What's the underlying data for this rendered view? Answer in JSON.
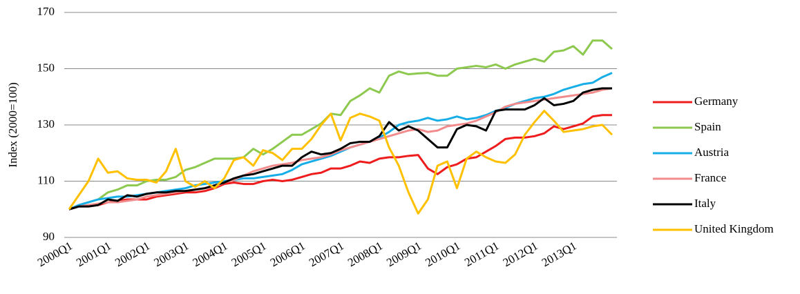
{
  "chart_data": {
    "type": "line",
    "y_label": "Index (2000=100)",
    "categories": [
      "2000Q1",
      null,
      null,
      null,
      "2001Q1",
      null,
      null,
      null,
      "2002Q1",
      null,
      null,
      null,
      "2003Q1",
      null,
      null,
      null,
      "2004Q1",
      null,
      null,
      null,
      "2005Q1",
      null,
      null,
      null,
      "2006Q1",
      null,
      null,
      null,
      "2007Q1",
      null,
      null,
      null,
      "2008Q1",
      null,
      null,
      null,
      "2009Q1",
      null,
      null,
      null,
      "2010Q1",
      null,
      null,
      null,
      "2011Q1",
      null,
      null,
      null,
      "2012Q1",
      null,
      null,
      null,
      "2013Q1",
      null,
      null,
      null,
      null
    ],
    "ylim": [
      90,
      170
    ],
    "yticks": [
      90,
      110,
      130,
      150,
      170
    ],
    "grid": true,
    "legend": "right",
    "series": [
      {
        "name": "Germany",
        "color": "#ee1c1c",
        "values": [
          100,
          101,
          101,
          101.5,
          102.5,
          103,
          103.5,
          103.5,
          103.5,
          104.5,
          105,
          105.5,
          106,
          106,
          106.5,
          107.5,
          109,
          109.5,
          109,
          109,
          110,
          110.5,
          110,
          110.5,
          111.5,
          112.5,
          113,
          114.5,
          114.5,
          115.5,
          117,
          116.5,
          118,
          118.5,
          118.5,
          119,
          119.3,
          114.5,
          112.5,
          115,
          116,
          118,
          118.5,
          120.5,
          122.5,
          125,
          125.5,
          125.5,
          126,
          127,
          129.5,
          128.5,
          129.5,
          130.5,
          133,
          133.5,
          133.5
        ]
      },
      {
        "name": "Spain",
        "color": "#8cc94e",
        "values": [
          100,
          101.5,
          102.5,
          103.5,
          106,
          107,
          108.5,
          108.5,
          110,
          110.5,
          110.5,
          111.5,
          114,
          115,
          116.5,
          118,
          118,
          118,
          118.5,
          121.5,
          119.5,
          121.5,
          124,
          126.5,
          126.5,
          128.5,
          130.5,
          134,
          133.5,
          138.5,
          140.5,
          143,
          141.5,
          147.5,
          149,
          148,
          148.3,
          148.5,
          147.5,
          147.5,
          150,
          150.5,
          151,
          150.5,
          151.5,
          150,
          151.5,
          152.5,
          153.5,
          152.5,
          156,
          156.5,
          158,
          155,
          160,
          160,
          157
        ]
      },
      {
        "name": "Austria",
        "color": "#17aee8",
        "values": [
          100,
          101.5,
          102.5,
          103.5,
          104,
          104.5,
          104.5,
          105,
          105.5,
          106,
          106.5,
          107,
          107.5,
          108.5,
          109,
          109.5,
          110,
          110.5,
          111,
          111,
          111.5,
          112,
          112.5,
          114,
          116,
          117,
          118,
          119,
          120.5,
          122,
          123,
          124,
          125.5,
          127.5,
          130,
          131,
          131.5,
          132.5,
          131.5,
          132,
          133,
          132,
          132.5,
          133.5,
          135,
          136,
          137.5,
          138.5,
          139.5,
          140,
          141,
          142.5,
          143.5,
          144.5,
          145,
          147,
          148.5
        ]
      },
      {
        "name": "France",
        "color": "#f28c8c",
        "values": [
          100,
          101,
          101.5,
          102,
          102.5,
          102.5,
          103,
          103.5,
          104.5,
          105,
          105.5,
          106,
          106.5,
          107,
          107.5,
          108,
          109.5,
          110.5,
          112,
          113.5,
          114.5,
          115.5,
          116,
          116.5,
          117.5,
          118,
          118.5,
          119.5,
          121,
          122,
          123,
          124,
          125,
          126,
          127,
          128,
          128.5,
          127.5,
          128,
          129.5,
          130,
          130.5,
          131.5,
          133,
          134.5,
          136.5,
          137.5,
          138,
          138.5,
          139,
          139.5,
          140,
          140.5,
          141,
          141.5,
          142.5,
          143
        ]
      },
      {
        "name": "Italy",
        "color": "#000000",
        "values": [
          100,
          101,
          101,
          101.5,
          103.5,
          103,
          105,
          104.5,
          105.5,
          106,
          106,
          106.5,
          106.5,
          107,
          107.5,
          108.5,
          109.5,
          111,
          112,
          112.5,
          113.5,
          114.5,
          115.5,
          115.5,
          118.5,
          120.5,
          119.5,
          120,
          121.5,
          123.5,
          124,
          124,
          126,
          131,
          128,
          129.5,
          128,
          125,
          122,
          122,
          128.5,
          130,
          129.5,
          128,
          135,
          135.5,
          135.5,
          135.5,
          137,
          139.5,
          137,
          137.5,
          138.5,
          141.5,
          142.5,
          143,
          143
        ]
      },
      {
        "name": "United Kingdom",
        "color": "#ffc000",
        "values": [
          100,
          105,
          110,
          118,
          113,
          113.5,
          111,
          110.5,
          110.5,
          109.5,
          113.5,
          121.5,
          110,
          108,
          110,
          107.5,
          111,
          117.5,
          118.5,
          115.5,
          121,
          120,
          117.5,
          121.5,
          121.5,
          125,
          130,
          134,
          124.5,
          132.5,
          134,
          133,
          131.5,
          122,
          115.5,
          106,
          98.5,
          103.5,
          115.5,
          117,
          107.5,
          118,
          120.5,
          118.5,
          117,
          116.5,
          119.5,
          126.5,
          131,
          135,
          131.5,
          127.5,
          128,
          128.5,
          129.5,
          130,
          126.5
        ]
      }
    ]
  }
}
